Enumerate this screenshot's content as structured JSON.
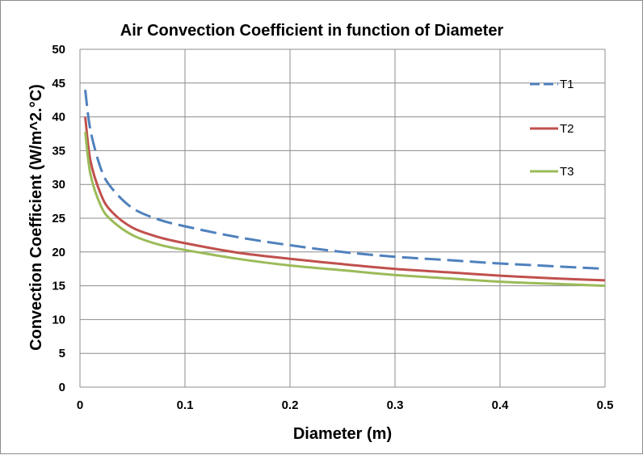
{
  "chart_data": {
    "type": "line",
    "title": "Air Convection Coefficient in function of Diameter",
    "xlabel": "Diameter (m)",
    "ylabel": "Convection Coefficient (W/m^2.°C)",
    "xlim": [
      0,
      0.5
    ],
    "ylim": [
      0,
      50
    ],
    "grid": true,
    "legend_position": "right",
    "x_ticks": [
      "0",
      "0.1",
      "0.2",
      "0.3",
      "0.4",
      "0.5"
    ],
    "y_ticks": [
      "0",
      "5",
      "10",
      "15",
      "20",
      "25",
      "30",
      "35",
      "40",
      "45",
      "50"
    ],
    "x": [
      0.005,
      0.01,
      0.02,
      0.03,
      0.05,
      0.075,
      0.1,
      0.15,
      0.2,
      0.25,
      0.3,
      0.35,
      0.4,
      0.45,
      0.5
    ],
    "series": [
      {
        "name": "T1",
        "color": "#4f81bd",
        "dash": "dashed",
        "values": [
          44.0,
          38.0,
          32.3,
          29.5,
          26.5,
          24.8,
          23.8,
          22.2,
          21.0,
          20.0,
          19.3,
          18.8,
          18.3,
          17.9,
          17.5
        ]
      },
      {
        "name": "T2",
        "color": "#c0504d",
        "dash": "solid",
        "values": [
          40.0,
          33.5,
          28.5,
          26.0,
          23.6,
          22.2,
          21.3,
          19.9,
          19.0,
          18.2,
          17.5,
          17.0,
          16.5,
          16.1,
          15.8
        ]
      },
      {
        "name": "T3",
        "color": "#9bbb59",
        "dash": "solid",
        "values": [
          37.8,
          31.5,
          26.8,
          24.7,
          22.5,
          21.1,
          20.3,
          19.0,
          18.0,
          17.3,
          16.6,
          16.1,
          15.6,
          15.3,
          15.0
        ]
      }
    ]
  }
}
